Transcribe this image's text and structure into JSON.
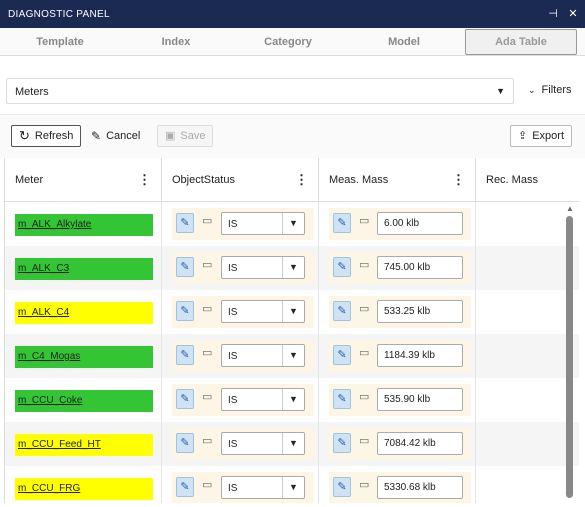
{
  "window": {
    "title": "DIAGNOSTIC PANEL"
  },
  "tabs": [
    {
      "label": "Template"
    },
    {
      "label": "Index"
    },
    {
      "label": "Category"
    },
    {
      "label": "Model"
    },
    {
      "label": "Ada Table",
      "active": true
    }
  ],
  "selector": {
    "value": "Meters"
  },
  "filters": {
    "label": "Filters"
  },
  "toolbar": {
    "refresh_label": "Refresh",
    "cancel_label": "Cancel",
    "save_label": "Save",
    "export_label": "Export"
  },
  "grid": {
    "columns": [
      "Meter",
      "ObjectStatus",
      "Meas. Mass",
      "Rec. Mass"
    ],
    "rows": [
      {
        "meter": "m_ALK_Alkylate",
        "color": "#34c534",
        "status": "IS",
        "mass": "6.00 klb"
      },
      {
        "meter": "m_ALK_C3",
        "color": "#34c534",
        "status": "IS",
        "mass": "745.00 klb"
      },
      {
        "meter": "m_ALK_C4",
        "color": "#ffff00",
        "status": "IS",
        "mass": "533.25 klb"
      },
      {
        "meter": "m_C4_Mogas",
        "color": "#34c534",
        "status": "IS",
        "mass": "1184.39 klb"
      },
      {
        "meter": "m_CCU_Coke",
        "color": "#34c534",
        "status": "IS",
        "mass": "535.90 klb"
      },
      {
        "meter": "m_CCU_Feed_HT",
        "color": "#ffff00",
        "status": "IS",
        "mass": "7084.42 klb"
      },
      {
        "meter": "m_CCU_FRG",
        "color": "#ffff00",
        "status": "IS",
        "mass": "5330.68 klb"
      }
    ]
  },
  "colors": {
    "titlebar": "#1b2a52",
    "ok": "#34c534",
    "warning": "#ffff00"
  },
  "icons": {
    "pin": "pin-icon",
    "close": "close-icon",
    "caret": "chevron-down-icon",
    "refresh": "refresh-icon",
    "cancel": "pencil-icon",
    "save": "save-icon",
    "export": "export-icon",
    "menu": "kebab-menu-icon",
    "edit": "edit-icon",
    "note": "comment-icon"
  }
}
